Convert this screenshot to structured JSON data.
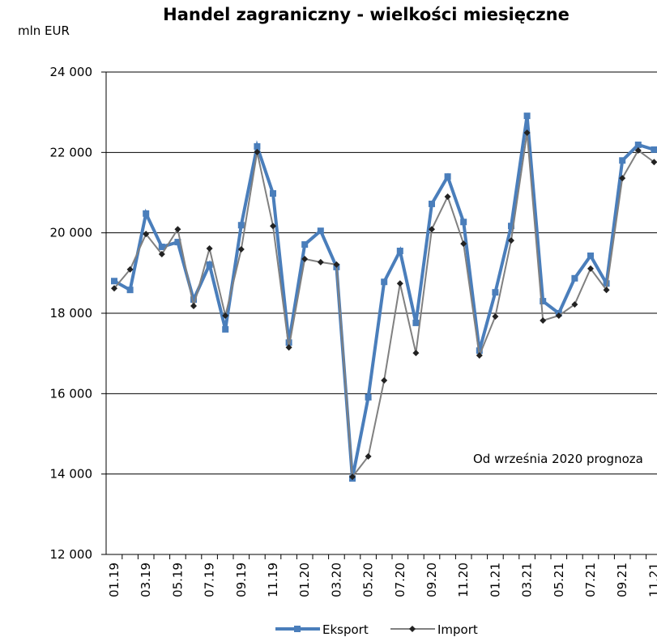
{
  "chart_data": {
    "type": "line",
    "title": "Handel zagraniczny - wielkości miesięczne",
    "ylabel": "mln EUR",
    "annotation": "Od września 2020 prognoza",
    "categories": [
      "01.19",
      null,
      "03.19",
      null,
      "05.19",
      null,
      "07.19",
      null,
      "09.19",
      null,
      "11.19",
      null,
      "01.20",
      null,
      "03.20",
      null,
      "05.20",
      null,
      "07.20",
      null,
      "09.20",
      null,
      "11.20",
      null,
      "01.21",
      null,
      "03.21",
      null,
      "05.21",
      null,
      "07.21",
      null,
      "09.21",
      null,
      "11.21"
    ],
    "series": [
      {
        "name": "Eksport",
        "color": "#4a7ebb",
        "values": [
          18800,
          18580,
          20480,
          19650,
          19770,
          18340,
          19210,
          17600,
          20190,
          22150,
          20980,
          17270,
          19710,
          20050,
          19150,
          13890,
          15910,
          18780,
          19550,
          17760,
          20720,
          21400,
          20270,
          17070,
          18520,
          20170,
          22910,
          18300,
          18000,
          18870,
          19430,
          18740,
          21800,
          22190,
          22070
        ]
      },
      {
        "name": "Import",
        "color": "#808080",
        "values": [
          18620,
          19090,
          19970,
          19470,
          20090,
          18180,
          19610,
          17940,
          19590,
          22010,
          20170,
          17150,
          19350,
          19270,
          19210,
          13930,
          14440,
          16330,
          18740,
          17010,
          20090,
          20900,
          19730,
          16950,
          17920,
          19810,
          22490,
          17820,
          17940,
          18220,
          19110,
          18580,
          21360,
          22050,
          21760
        ]
      }
    ],
    "ylim": [
      12000,
      24000
    ],
    "yticks": [
      {
        "value": 12000,
        "label": "12 000"
      },
      {
        "value": 14000,
        "label": "14 000"
      },
      {
        "value": 16000,
        "label": "16 000"
      },
      {
        "value": 18000,
        "label": "18 000"
      },
      {
        "value": 20000,
        "label": "20 000"
      },
      {
        "value": 22000,
        "label": "22 000"
      },
      {
        "value": 24000,
        "label": "24 000"
      }
    ],
    "grid": true
  }
}
